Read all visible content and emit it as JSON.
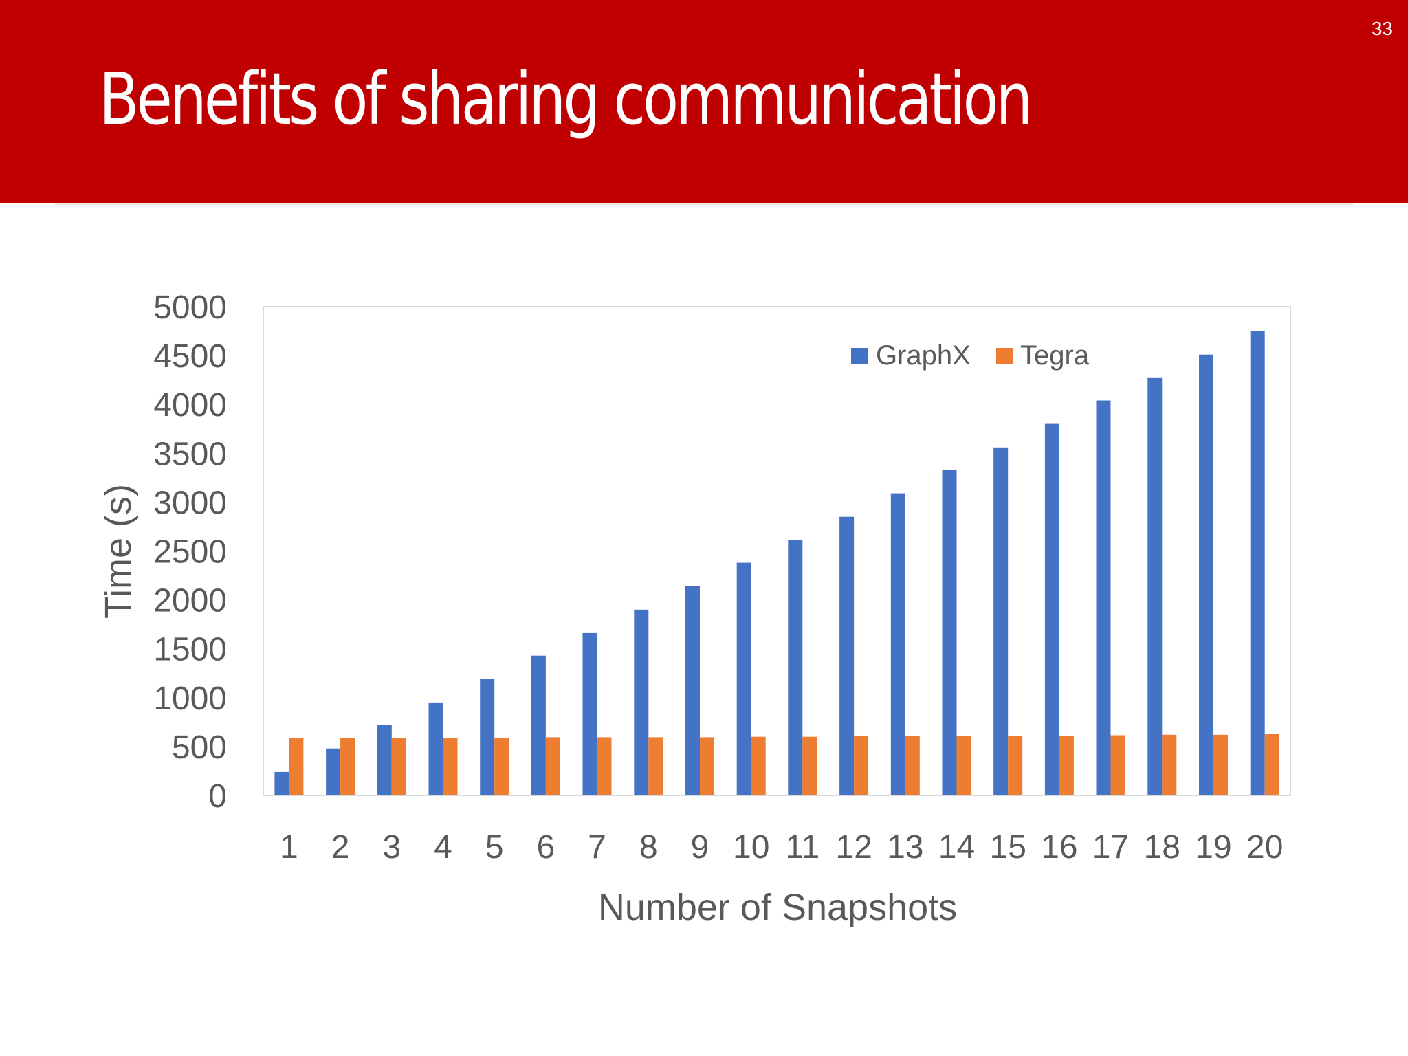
{
  "slide": {
    "title": "Benefits of sharing communication",
    "number": "33"
  },
  "colors": {
    "header": "#c00000",
    "graphx": "#4472c4",
    "tegra": "#ed7d31",
    "axis_text": "#595959"
  },
  "chart_data": {
    "type": "bar",
    "title": "",
    "xlabel": "Number of Snapshots",
    "ylabel": "Time (s)",
    "ylim": [
      0,
      5000
    ],
    "yticks": [
      "0",
      "500",
      "1000",
      "1500",
      "2000",
      "2500",
      "3000",
      "3500",
      "4000",
      "4500",
      "5000"
    ],
    "grid": false,
    "legend_position": "top-right",
    "categories": [
      "1",
      "2",
      "3",
      "4",
      "5",
      "6",
      "7",
      "8",
      "9",
      "10",
      "11",
      "12",
      "13",
      "14",
      "15",
      "16",
      "17",
      "18",
      "19",
      "20"
    ],
    "series": [
      {
        "name": "GraphX",
        "color": "#4472c4",
        "values": [
          240,
          480,
          720,
          950,
          1190,
          1430,
          1660,
          1900,
          2140,
          2380,
          2610,
          2850,
          3090,
          3330,
          3560,
          3800,
          4040,
          4270,
          4510,
          4750
        ]
      },
      {
        "name": "Tegra",
        "color": "#ed7d31",
        "values": [
          590,
          590,
          590,
          590,
          590,
          595,
          595,
          595,
          595,
          600,
          600,
          610,
          610,
          610,
          610,
          610,
          615,
          620,
          620,
          630
        ]
      }
    ]
  }
}
